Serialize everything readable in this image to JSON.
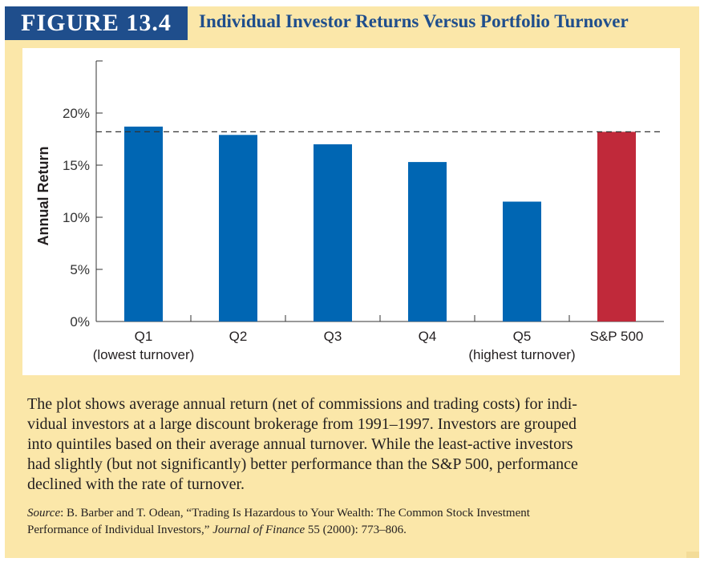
{
  "figure": {
    "label": "FIGURE 13.4",
    "title": "Individual Investor Returns Versus Portfolio Turnover"
  },
  "chart_data": {
    "type": "bar",
    "categories": [
      "Q1",
      "Q2",
      "Q3",
      "Q4",
      "Q5",
      "S&P 500"
    ],
    "category_sublabels": [
      "(lowest turnover)",
      "",
      "",
      "",
      "(highest turnover)",
      ""
    ],
    "values": [
      18.7,
      17.9,
      17.0,
      15.3,
      11.5,
      18.2
    ],
    "ylabel": "Annual Return",
    "yticks": [
      "0%",
      "5%",
      "10%",
      "15%",
      "20%"
    ],
    "ytick_values": [
      0,
      5,
      10,
      15,
      20
    ],
    "ylim": [
      0,
      25
    ],
    "reference_line": 18.2,
    "colors": {
      "quintile_bar": "#0066b3",
      "benchmark_bar": "#c0293a",
      "axis": "#333333"
    }
  },
  "caption": {
    "lines": [
      "The plot shows average annual return (net of commissions and trading costs) for indi-",
      "vidual investors at a large discount brokerage from 1991–1997. Investors are grouped",
      "into quintiles based on their average annual turnover. While the least-active investors",
      "had slightly (but not significantly) better performance than the S&P 500, performance",
      "declined with the rate of turnover."
    ]
  },
  "source": {
    "label": "Source",
    "line1": ": B. Barber and T. Odean, “Trading Is Hazardous to Your Wealth: The Common Stock Investment",
    "line2_pre": "Performance of Individual Investors,” ",
    "journal": "Journal of Finance",
    "line2_post": " 55 (2000): 773–806."
  }
}
